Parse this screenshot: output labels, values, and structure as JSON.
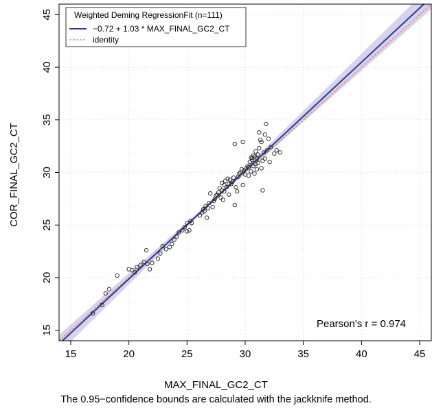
{
  "chart_data": {
    "type": "scatter",
    "title": "",
    "xlabel": "MAX_FINAL_GC2_CT",
    "ylabel": "COR_FINAL_GC2_CT",
    "xlim": [
      14,
      46
    ],
    "ylim": [
      14,
      46
    ],
    "xticks": [
      15,
      20,
      25,
      30,
      35,
      40,
      45
    ],
    "yticks": [
      15,
      20,
      25,
      30,
      35,
      40,
      45
    ],
    "grid": true,
    "legend_position": "top-left",
    "legend_title": "Weighted Deming RegressionFit (n=111)",
    "legend_entries": [
      {
        "label": "−0.72 + 1.03 * MAX_FINAL_GC2_CT",
        "color": "#2B3990",
        "style": "solid"
      },
      {
        "label": "identity",
        "color": "#E8795A",
        "style": "dashed"
      }
    ],
    "regression": {
      "intercept": -0.72,
      "slope": 1.03,
      "color": "#2B3990",
      "band_color": "#C9C3E8"
    },
    "identity": {
      "color": "#E8795A"
    },
    "annotation": "Pearson's r = 0.974",
    "caption": "The 0.95−confidence bounds are calculated with the jackknife method.",
    "points": [
      [
        16.9,
        16.6
      ],
      [
        17.7,
        17.4
      ],
      [
        18.0,
        18.5
      ],
      [
        18.3,
        18.9
      ],
      [
        19.0,
        20.2
      ],
      [
        20.0,
        20.8
      ],
      [
        20.3,
        20.7
      ],
      [
        20.5,
        20.5
      ],
      [
        20.7,
        21.0
      ],
      [
        21.0,
        21.2
      ],
      [
        21.3,
        21.5
      ],
      [
        21.5,
        22.6
      ],
      [
        21.6,
        21.3
      ],
      [
        21.8,
        20.8
      ],
      [
        22.0,
        21.4
      ],
      [
        22.5,
        21.8
      ],
      [
        22.7,
        22.3
      ],
      [
        22.9,
        23.0
      ],
      [
        23.2,
        22.7
      ],
      [
        23.5,
        22.9
      ],
      [
        23.7,
        23.2
      ],
      [
        23.9,
        23.6
      ],
      [
        24.1,
        23.9
      ],
      [
        24.3,
        24.3
      ],
      [
        24.6,
        24.5
      ],
      [
        24.8,
        24.8
      ],
      [
        25.0,
        24.4
      ],
      [
        25.0,
        25.2
      ],
      [
        25.2,
        24.5
      ],
      [
        25.3,
        25.4
      ],
      [
        25.4,
        25.2
      ],
      [
        26.1,
        25.9
      ],
      [
        26.3,
        26.2
      ],
      [
        26.4,
        26.5
      ],
      [
        26.5,
        26.3
      ],
      [
        26.6,
        26.8
      ],
      [
        26.7,
        25.7
      ],
      [
        26.8,
        26.6
      ],
      [
        26.9,
        27.1
      ],
      [
        27.0,
        28.0
      ],
      [
        27.2,
        26.7
      ],
      [
        27.3,
        27.3
      ],
      [
        27.4,
        27.5
      ],
      [
        27.5,
        27.8
      ],
      [
        27.6,
        27.9
      ],
      [
        27.7,
        28.1
      ],
      [
        27.8,
        28.5
      ],
      [
        27.9,
        27.6
      ],
      [
        28.0,
        28.3
      ],
      [
        28.0,
        29.0
      ],
      [
        28.1,
        27.4
      ],
      [
        28.2,
        28.8
      ],
      [
        28.2,
        28.2
      ],
      [
        28.3,
        29.2
      ],
      [
        28.4,
        28.6
      ],
      [
        28.5,
        29.4
      ],
      [
        28.6,
        27.9
      ],
      [
        28.6,
        28.9
      ],
      [
        28.7,
        29.3
      ],
      [
        28.8,
        28.9
      ],
      [
        28.9,
        29.1
      ],
      [
        29.0,
        29.5
      ],
      [
        29.1,
        32.7
      ],
      [
        29.1,
        26.9
      ],
      [
        29.2,
        28.6
      ],
      [
        29.3,
        28.2
      ],
      [
        29.5,
        29.9
      ],
      [
        29.6,
        30.0
      ],
      [
        29.7,
        30.3
      ],
      [
        29.8,
        32.9
      ],
      [
        29.8,
        28.8
      ],
      [
        29.9,
        30.2
      ],
      [
        30.0,
        29.8
      ],
      [
        30.1,
        30.4
      ],
      [
        30.2,
        30.6
      ],
      [
        30.3,
        29.7
      ],
      [
        30.3,
        30.5
      ],
      [
        30.4,
        31.0
      ],
      [
        30.5,
        30.1
      ],
      [
        30.6,
        31.4
      ],
      [
        30.6,
        31.2
      ],
      [
        30.7,
        31.6
      ],
      [
        30.7,
        30.6
      ],
      [
        30.8,
        31.5
      ],
      [
        30.8,
        29.9
      ],
      [
        30.9,
        30.8
      ],
      [
        30.9,
        32.0
      ],
      [
        31.0,
        31.3
      ],
      [
        31.0,
        30.3
      ],
      [
        31.1,
        31.7
      ],
      [
        31.2,
        32.3
      ],
      [
        31.2,
        33.8
      ],
      [
        31.3,
        33.1
      ],
      [
        31.4,
        30.4
      ],
      [
        31.4,
        32.9
      ],
      [
        31.5,
        31.1
      ],
      [
        31.5,
        28.3
      ],
      [
        31.6,
        31.9
      ],
      [
        31.7,
        33.6
      ],
      [
        31.7,
        31.3
      ],
      [
        31.8,
        34.6
      ],
      [
        31.9,
        32.1
      ],
      [
        32.0,
        33.2
      ],
      [
        32.1,
        31.0
      ],
      [
        32.2,
        32.4
      ],
      [
        32.5,
        31.8
      ],
      [
        32.7,
        32.1
      ],
      [
        33.0,
        31.9
      ],
      [
        30.5,
        31.4
      ],
      [
        31.1,
        30.9
      ],
      [
        29.4,
        29.6
      ]
    ]
  }
}
